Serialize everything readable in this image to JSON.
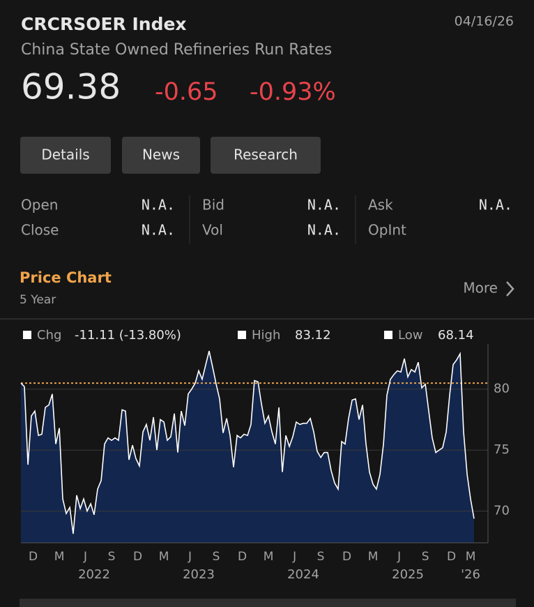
{
  "header": {
    "ticker": "CRCRSOER Index",
    "date": "04/16/26",
    "name": "China State Owned Refineries Run Rates",
    "price": "69.38",
    "change": "-0.65",
    "change_pct": "-0.93%"
  },
  "tabs": [
    "Details",
    "News",
    "Research"
  ],
  "quote": [
    [
      {
        "label": "Open",
        "value": "N.A."
      },
      {
        "label": "Close",
        "value": "N.A."
      }
    ],
    [
      {
        "label": "Bid",
        "value": "N.A."
      },
      {
        "label": "Vol",
        "value": "N.A."
      }
    ],
    [
      {
        "label": "Ask",
        "value": "N.A."
      },
      {
        "label": "OpInt",
        "value": "N.A."
      }
    ]
  ],
  "section": {
    "title": "Price Chart",
    "period": "5 Year",
    "more": "More"
  },
  "chart_data": {
    "type": "area",
    "stats": [
      {
        "label": "Chg",
        "value": "-11.11 (-13.80%)"
      },
      {
        "label": "High",
        "value": 83.12
      },
      {
        "label": "Low",
        "value": 68.14
      }
    ],
    "x": [
      2021.8,
      2021.833,
      2021.867,
      2021.9,
      2021.933,
      2021.967,
      2022,
      2022.033,
      2022.067,
      2022.1,
      2022.133,
      2022.167,
      2022.2,
      2022.233,
      2022.267,
      2022.3,
      2022.333,
      2022.367,
      2022.4,
      2022.433,
      2022.467,
      2022.5,
      2022.533,
      2022.567,
      2022.6,
      2022.633,
      2022.667,
      2022.7,
      2022.733,
      2022.767,
      2022.8,
      2022.833,
      2022.867,
      2022.9,
      2022.933,
      2022.967,
      2023,
      2023.033,
      2023.067,
      2023.1,
      2023.133,
      2023.167,
      2023.2,
      2023.233,
      2023.267,
      2023.3,
      2023.333,
      2023.367,
      2023.4,
      2023.433,
      2023.467,
      2023.5,
      2023.533,
      2023.567,
      2023.6,
      2023.633,
      2023.667,
      2023.7,
      2023.733,
      2023.767,
      2023.8,
      2023.833,
      2023.867,
      2023.9,
      2023.933,
      2023.967,
      2024,
      2024.033,
      2024.067,
      2024.1,
      2024.133,
      2024.167,
      2024.2,
      2024.233,
      2024.267,
      2024.3,
      2024.333,
      2024.367,
      2024.4,
      2024.433,
      2024.467,
      2024.5,
      2024.533,
      2024.567,
      2024.6,
      2024.633,
      2024.667,
      2024.7,
      2024.733,
      2024.767,
      2024.8,
      2024.833,
      2024.867,
      2024.9,
      2024.933,
      2024.967,
      2025,
      2025.033,
      2025.067,
      2025.1,
      2025.133,
      2025.167,
      2025.2,
      2025.233,
      2025.267,
      2025.3,
      2025.333,
      2025.367,
      2025.4,
      2025.433,
      2025.467,
      2025.5,
      2025.533,
      2025.567,
      2025.6,
      2025.633,
      2025.667,
      2025.7,
      2025.733,
      2025.767,
      2025.8,
      2025.833,
      2025.867,
      2025.9,
      2025.933,
      2025.967,
      2026,
      2026.033,
      2026.067,
      2026.1,
      2026.133
    ],
    "values": [
      80.49,
      80.2,
      73.8,
      77.8,
      78.2,
      76.2,
      76.3,
      78.5,
      78.7,
      79.6,
      75.5,
      76.8,
      71,
      69.8,
      70.3,
      68.14,
      71.3,
      70.2,
      71,
      70,
      70.6,
      69.7,
      71.8,
      72.5,
      75.5,
      76,
      75.8,
      76,
      75.8,
      78.3,
      78.2,
      74.2,
      75.4,
      74.3,
      73.7,
      76.5,
      77.1,
      75.8,
      77.7,
      75,
      77.5,
      77.3,
      75.8,
      76.1,
      78,
      74.8,
      78.2,
      77,
      79.6,
      80,
      80.5,
      81.5,
      80.8,
      82,
      83.12,
      81.8,
      80.4,
      79.2,
      76.4,
      77.6,
      76.2,
      73.6,
      76.2,
      76,
      76.3,
      76.2,
      77.1,
      80.7,
      80.6,
      78.8,
      77.2,
      77.8,
      76.5,
      75.5,
      78.5,
      73.2,
      76.2,
      75.3,
      76.1,
      77.3,
      77.1,
      77.2,
      77.2,
      77.6,
      76.5,
      74.9,
      74.4,
      74.8,
      74.8,
      73.3,
      72.3,
      71.8,
      75.7,
      75.5,
      77.6,
      79.1,
      79.2,
      77.5,
      78.7,
      75.5,
      73.2,
      72.2,
      71.8,
      73,
      75.5,
      79.5,
      80.8,
      81.2,
      81.5,
      81.4,
      82.5,
      81,
      81.6,
      81.4,
      82.2,
      80.1,
      80.4,
      78.2,
      76,
      74.8,
      75,
      75.2,
      76.5,
      79.5,
      82,
      82.4,
      82.9,
      76.5,
      73,
      71,
      69.38
    ],
    "color": "#ffffff",
    "fill_color": "#13264d",
    "reference_color": "#e9a24a",
    "xlim": [
      2021.8,
      2026.133
    ],
    "xticks": [
      {
        "value": 2021.917,
        "label": "D"
      },
      {
        "value": 2022.167,
        "label": "M"
      },
      {
        "value": 2022.417,
        "label": "J"
      },
      {
        "value": 2022.667,
        "label": "S"
      },
      {
        "value": 2022.917,
        "label": "D"
      },
      {
        "value": 2023.167,
        "label": "M"
      },
      {
        "value": 2023.417,
        "label": "J"
      },
      {
        "value": 2023.667,
        "label": "S"
      },
      {
        "value": 2023.917,
        "label": "D"
      },
      {
        "value": 2024.167,
        "label": "M"
      },
      {
        "value": 2024.417,
        "label": "J"
      },
      {
        "value": 2024.667,
        "label": "S"
      },
      {
        "value": 2024.917,
        "label": "D"
      },
      {
        "value": 2025.167,
        "label": "M"
      },
      {
        "value": 2025.417,
        "label": "J"
      },
      {
        "value": 2025.667,
        "label": "S"
      },
      {
        "value": 2025.917,
        "label": "D"
      },
      {
        "value": 2026.1,
        "label": "M"
      }
    ],
    "year_ticks": [
      {
        "value": 2022.5,
        "label": "2022"
      },
      {
        "value": 2023.5,
        "label": "2023"
      },
      {
        "value": 2024.5,
        "label": "2024"
      },
      {
        "value": 2025.5,
        "label": "2025"
      },
      {
        "value": 2026.1,
        "label": "'26"
      }
    ],
    "ylim": [
      67.4,
      83.7
    ],
    "yticks": [
      70,
      75,
      80
    ],
    "grid": true
  }
}
